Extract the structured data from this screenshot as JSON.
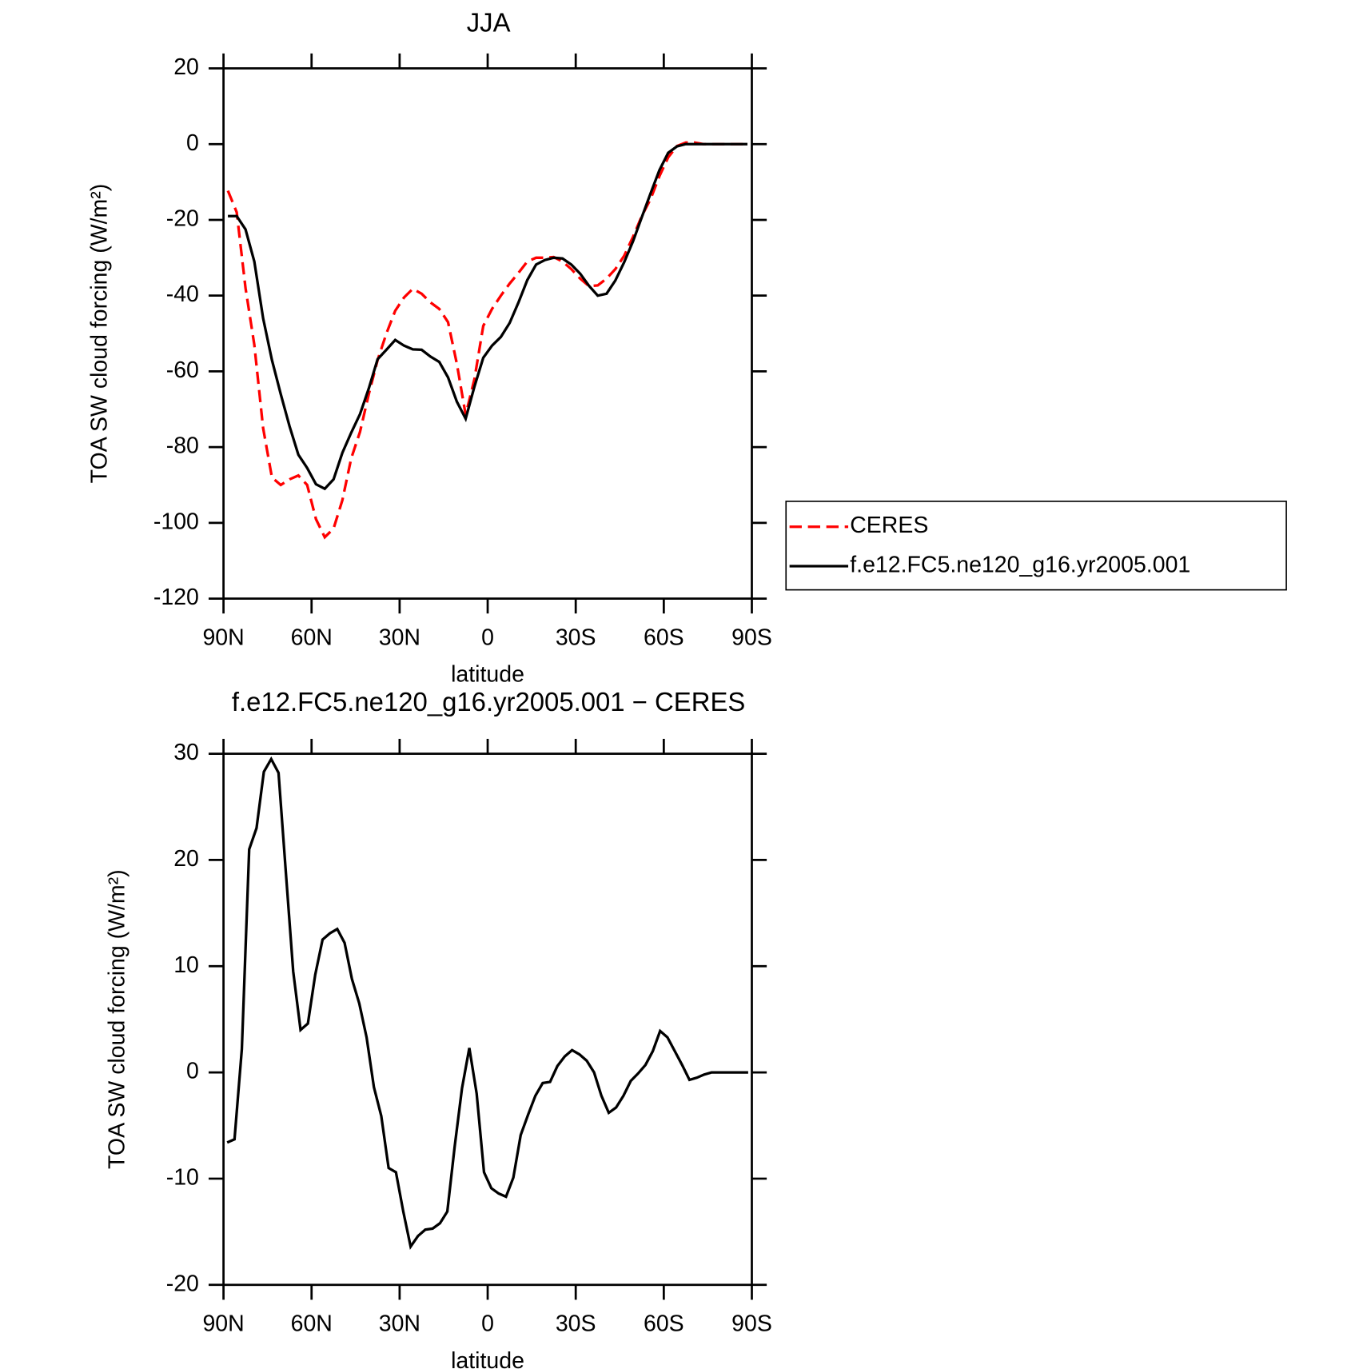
{
  "chart_data": [
    {
      "type": "line",
      "title": "JJA",
      "x_label": "latitude",
      "y_label": "TOA SW cloud forcing (W/m²)",
      "x": [
        88.5,
        85.5,
        82.5,
        79.5,
        76.5,
        73.5,
        70.5,
        67.5,
        64.5,
        61.5,
        58.5,
        55.5,
        52.5,
        49.5,
        46.5,
        43.5,
        40.5,
        37.5,
        34.5,
        31.5,
        28.5,
        25.5,
        22.5,
        19.5,
        16.5,
        13.5,
        10.5,
        7.5,
        4.5,
        1.5,
        -1.5,
        -4.5,
        -7.5,
        -10.5,
        -13.5,
        -16.5,
        -19.5,
        -22.5,
        -25.5,
        -28.5,
        -31.5,
        -34.5,
        -37.5,
        -40.5,
        -43.5,
        -46.5,
        -49.5,
        -52.5,
        -55.5,
        -58.5,
        -61.5,
        -64.5,
        -67.5,
        -70.5,
        -73.5,
        -76.5,
        -79.5,
        -82.5,
        -85.5,
        -88.5
      ],
      "series": [
        {
          "name": "CERES",
          "color": "#ff0000",
          "line_style": "dashed",
          "values": [
            -12.3,
            -18,
            -38,
            -53,
            -75,
            -88,
            -90,
            -88.5,
            -87.5,
            -90,
            -99,
            -103.8,
            -101.5,
            -94,
            -83,
            -76,
            -66,
            -57,
            -50,
            -44,
            -40.5,
            -38.2,
            -39.5,
            -41.8,
            -43.5,
            -47,
            -58,
            -71.5,
            -62,
            -48,
            -43.5,
            -40,
            -36.8,
            -34,
            -31,
            -30,
            -30,
            -29.8,
            -31,
            -33,
            -35.5,
            -37.5,
            -37.3,
            -35.5,
            -33,
            -29.5,
            -24.5,
            -19,
            -14.5,
            -8.5,
            -3.5,
            -0.5,
            0.4,
            0.4,
            0,
            0,
            0,
            0,
            0,
            0
          ]
        },
        {
          "name": "f.e12.FC5.ne120_g16.yr2005.001",
          "color": "#000000",
          "line_style": "solid",
          "values": [
            -19,
            -19,
            -22.5,
            -31,
            -46,
            -57,
            -66,
            -74.5,
            -82,
            -85.5,
            -89.8,
            -91,
            -88.5,
            -81.5,
            -76.2,
            -71.3,
            -64.5,
            -56.8,
            -54.3,
            -51.7,
            -53.2,
            -54.2,
            -54.3,
            -56.1,
            -57.5,
            -61.6,
            -68,
            -72.5,
            -64,
            -56.4,
            -53.2,
            -50.9,
            -47.2,
            -41.8,
            -35.9,
            -31.8,
            -30.6,
            -30,
            -30.2,
            -31.8,
            -34.2,
            -37.4,
            -40,
            -39.5,
            -36,
            -31.2,
            -25.7,
            -19.3,
            -13,
            -6.9,
            -2.3,
            -0.6,
            0,
            0,
            0,
            0,
            0,
            0,
            0,
            0
          ]
        }
      ],
      "xlim": [
        90,
        -90
      ],
      "xticks": [
        {
          "value": 90,
          "label": "90N"
        },
        {
          "value": 60,
          "label": "60N"
        },
        {
          "value": 30,
          "label": "30N"
        },
        0,
        {
          "value": -30,
          "label": "30S"
        },
        {
          "value": -60,
          "label": "60S"
        },
        {
          "value": -90,
          "label": "90S"
        }
      ],
      "ylim": [
        -120,
        20
      ],
      "yticks": [
        -120,
        -100,
        -80,
        -60,
        -40,
        -20,
        0,
        20
      ],
      "legend": "right"
    },
    {
      "type": "line",
      "title": "f.e12.FC5.ne120_g16.yr2005.001 − CERES",
      "x_label": "latitude",
      "y_label": "TOA SW cloud forcing (W/m²)",
      "x": [
        88.75,
        86.25,
        83.75,
        81.25,
        78.75,
        76.25,
        73.75,
        71.25,
        68.75,
        66.25,
        63.75,
        61.25,
        58.75,
        56.25,
        53.75,
        51.25,
        48.75,
        46.25,
        43.75,
        41.25,
        38.75,
        36.25,
        33.75,
        31.25,
        28.75,
        26.25,
        23.75,
        21.25,
        18.75,
        16.25,
        13.75,
        11.25,
        8.75,
        6.25,
        3.75,
        1.25,
        -1.25,
        -3.75,
        -6.25,
        -8.75,
        -11.25,
        -13.75,
        -16.25,
        -18.75,
        -21.25,
        -23.75,
        -26.25,
        -28.75,
        -31.25,
        -33.75,
        -36.25,
        -38.75,
        -41.25,
        -43.75,
        -46.25,
        -48.75,
        -51.25,
        -53.75,
        -56.25,
        -58.75,
        -61.25,
        -63.75,
        -66.25,
        -68.75,
        -71.25,
        -73.75,
        -76.25,
        -78.75,
        -81.25,
        -83.75,
        -86.25,
        -88.75
      ],
      "series": [
        {
          "color": "#000000",
          "line_style": "solid",
          "values": [
            -6.6,
            -6.3,
            2.2,
            21,
            23,
            28.3,
            29.5,
            28.2,
            18.8,
            9.5,
            4,
            4.6,
            9.2,
            12.5,
            13.1,
            13.5,
            12.2,
            8.8,
            6.5,
            3.3,
            -1.4,
            -4.1,
            -9,
            -9.4,
            -13.1,
            -16.4,
            -15.4,
            -14.8,
            -14.7,
            -14.2,
            -13.1,
            -7,
            -1.5,
            2.3,
            -2,
            -9.4,
            -10.9,
            -11.4,
            -11.7,
            -9.9,
            -5.9,
            -4,
            -2.2,
            -1,
            -0.9,
            0.6,
            1.5,
            2.1,
            1.7,
            1.1,
            0,
            -2.2,
            -3.8,
            -3.3,
            -2.2,
            -0.8,
            -0.1,
            0.7,
            2,
            3.9,
            3.3,
            2,
            0.7,
            -0.7,
            -0.5,
            -0.2,
            0,
            0,
            0,
            0,
            0,
            0
          ]
        }
      ],
      "xlim": [
        90,
        -90
      ],
      "xticks": [
        {
          "value": 90,
          "label": "90N"
        },
        {
          "value": 60,
          "label": "60N"
        },
        {
          "value": 30,
          "label": "30N"
        },
        0,
        {
          "value": -30,
          "label": "30S"
        },
        {
          "value": -60,
          "label": "60S"
        },
        {
          "value": -90,
          "label": "90S"
        }
      ],
      "ylim": [
        -20,
        30
      ],
      "yticks": [
        -20,
        -10,
        0,
        10,
        20,
        30
      ]
    }
  ]
}
